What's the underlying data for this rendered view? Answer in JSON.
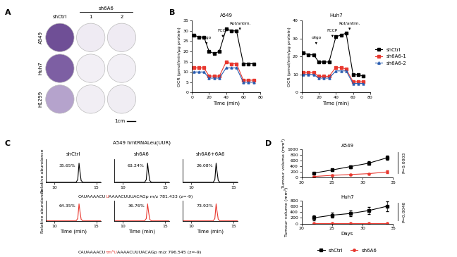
{
  "panel_labels": [
    "A",
    "B",
    "C",
    "D"
  ],
  "panel_a": {
    "control": "shCtrl",
    "group": "sh6A6",
    "clones": [
      "1",
      "2"
    ],
    "rows": [
      "A549",
      "Huh7",
      "H1299"
    ],
    "well_colors": [
      [
        "#6f4f96",
        "#efebf3",
        "#efebf3"
      ],
      [
        "#7d5fa3",
        "#f2eff5",
        "#f2eff5"
      ],
      [
        "#b5a3cc",
        "#f1eef4",
        "#f0edf3"
      ]
    ],
    "scale_bar": "1cm"
  },
  "panel_c": {
    "title": "A549 hmtRNALeu(UUR)",
    "sequences": [
      [
        {
          "text": "CAUAAAACU",
          "color": "black"
        },
        {
          "text": "U",
          "color": "#e8382f"
        },
        {
          "text": "AAAACUUUACAGp m/z 781.433 (z=-9)",
          "color": "black"
        }
      ],
      [
        {
          "text": "CAUAAAACU",
          "color": "black"
        },
        {
          "text": "τm⁵U",
          "color": "#e8382f"
        },
        {
          "text": "AAAACUUUACAGp m/z 796.545 (z=-9)",
          "color": "black"
        }
      ]
    ]
  },
  "chart_data": [
    {
      "type": "line",
      "panel": "B",
      "title": "A549",
      "x_label": "Time (min)",
      "y_label": "OCR (pmol/min/μg protein)",
      "x": [
        2,
        8,
        14,
        20,
        26,
        32,
        40,
        46,
        52,
        60,
        66,
        72
      ],
      "xlim": [
        0,
        80
      ],
      "xticks": [
        0,
        20,
        40,
        60,
        80
      ],
      "ylim": [
        0,
        35
      ],
      "yticks": [
        0,
        5,
        10,
        15,
        20,
        25,
        30,
        35
      ],
      "annotations": [
        {
          "text": "oligo",
          "x": 17
        },
        {
          "text": "FCCP",
          "x": 36
        },
        {
          "text": "Rot/antim.",
          "x": 56
        }
      ],
      "series": [
        {
          "name": "shCtrl",
          "color": "black",
          "marker": "square",
          "values": [
            28,
            27,
            27,
            20,
            19,
            20,
            31,
            30,
            30,
            14,
            14,
            14
          ]
        },
        {
          "name": "sh6A6-1",
          "color": "#e8382f",
          "marker": "square",
          "values": [
            12,
            12,
            12,
            8,
            8,
            8,
            15,
            14,
            14,
            6,
            6,
            6
          ]
        },
        {
          "name": "sh6A6-2",
          "color": "#2a5db0",
          "marker": "triangle",
          "values": [
            10,
            10,
            10,
            7,
            7,
            7,
            12,
            12,
            12,
            5,
            5,
            5
          ]
        }
      ]
    },
    {
      "type": "line",
      "panel": "B",
      "title": "Huh7",
      "x_label": "Time (min)",
      "y_label": "OCR (pmol/min/μg protein)",
      "x": [
        2,
        8,
        14,
        20,
        26,
        32,
        40,
        46,
        52,
        60,
        66,
        72
      ],
      "xlim": [
        0,
        80
      ],
      "xticks": [
        0,
        20,
        40,
        60,
        80
      ],
      "ylim": [
        0,
        40
      ],
      "yticks": [
        0,
        10,
        20,
        30,
        40
      ],
      "legend": "right",
      "annotations": [
        {
          "text": "oligo",
          "x": 17
        },
        {
          "text": "FCCP",
          "x": 36
        },
        {
          "text": "Rot/antim.",
          "x": 56
        }
      ],
      "series": [
        {
          "name": "shCtrl",
          "color": "black",
          "marker": "square",
          "values": [
            22,
            21,
            21,
            17,
            17,
            17,
            31,
            32,
            33,
            10,
            10,
            9
          ]
        },
        {
          "name": "sh6A6-1",
          "color": "#e8382f",
          "marker": "square",
          "values": [
            11,
            11,
            11,
            9,
            9,
            9,
            14,
            14,
            13,
            6,
            6,
            6
          ]
        },
        {
          "name": "sh6A6-2",
          "color": "#2a5db0",
          "marker": "triangle",
          "values": [
            10,
            10,
            10,
            8,
            8,
            8,
            12,
            12,
            12,
            5,
            5,
            5
          ]
        }
      ]
    },
    {
      "type": "line",
      "panel": "C",
      "title": "shCtrl",
      "y_label": "Relative abundance",
      "tick_labels": "x",
      "color": "black",
      "x": [
        9,
        12.6,
        12.8,
        12.95,
        13.05,
        13.2,
        13.4,
        15.5
      ],
      "values": [
        0.01,
        0.01,
        0.15,
        1.0,
        0.6,
        0.1,
        0.01,
        0.01
      ],
      "xlim": [
        9,
        15.5
      ],
      "xticks": [
        10,
        15
      ],
      "ylim": [
        0,
        1.2
      ],
      "annotations": [
        {
          "text": "35.65%"
        }
      ]
    },
    {
      "type": "line",
      "panel": "C",
      "title": "sh6A6",
      "tick_labels": "x",
      "color": "black",
      "x": [
        9,
        12.6,
        12.8,
        12.95,
        13.05,
        13.2,
        13.4,
        15.5
      ],
      "values": [
        0.01,
        0.01,
        0.15,
        1.0,
        0.6,
        0.1,
        0.01,
        0.01
      ],
      "xlim": [
        9,
        15.5
      ],
      "xticks": [
        10,
        15
      ],
      "ylim": [
        0,
        1.2
      ],
      "annotations": [
        {
          "text": "63.24%"
        }
      ]
    },
    {
      "type": "line",
      "panel": "C",
      "title": "sh6A6+6A6",
      "tick_labels": "x",
      "color": "black",
      "x": [
        9,
        12.6,
        12.8,
        12.95,
        13.05,
        13.2,
        13.4,
        15.5
      ],
      "values": [
        0.01,
        0.01,
        0.15,
        1.0,
        0.6,
        0.1,
        0.01,
        0.01
      ],
      "xlim": [
        9,
        15.5
      ],
      "xticks": [
        10,
        15
      ],
      "ylim": [
        0,
        1.2
      ],
      "annotations": [
        {
          "text": "26.08%"
        }
      ]
    },
    {
      "type": "line",
      "panel": "C",
      "y_label": "Relative abundance",
      "x_label": "Time (min)",
      "tick_labels": "x",
      "color": "#e8382f",
      "x": [
        9,
        12.6,
        12.8,
        12.95,
        13.05,
        13.2,
        13.4,
        15.5
      ],
      "values": [
        0.01,
        0.01,
        0.15,
        1.0,
        0.6,
        0.1,
        0.01,
        0.01
      ],
      "xlim": [
        9,
        15.5
      ],
      "xticks": [
        10,
        15
      ],
      "ylim": [
        0,
        1.2
      ],
      "annotations": [
        {
          "text": "64.35%"
        }
      ]
    },
    {
      "type": "line",
      "panel": "C",
      "x_label": "Time (min)",
      "tick_labels": "x",
      "color": "#e8382f",
      "x": [
        9,
        12.6,
        12.8,
        12.95,
        13.05,
        13.2,
        13.4,
        15.5
      ],
      "values": [
        0.01,
        0.01,
        0.15,
        1.0,
        0.6,
        0.1,
        0.01,
        0.01
      ],
      "xlim": [
        9,
        15.5
      ],
      "xticks": [
        10,
        15
      ],
      "ylim": [
        0,
        1.2
      ],
      "annotations": [
        {
          "text": "36.76%"
        }
      ]
    },
    {
      "type": "line",
      "panel": "C",
      "x_label": "Time (min)",
      "tick_labels": "x",
      "color": "#e8382f",
      "x": [
        9,
        12.6,
        12.8,
        12.95,
        13.05,
        13.2,
        13.4,
        15.5
      ],
      "values": [
        0.01,
        0.01,
        0.15,
        1.0,
        0.6,
        0.1,
        0.01,
        0.01
      ],
      "xlim": [
        9,
        15.5
      ],
      "xticks": [
        10,
        15
      ],
      "ylim": [
        0,
        1.2
      ],
      "annotations": [
        {
          "text": "73.92%"
        }
      ]
    },
    {
      "type": "line",
      "panel": "D",
      "title": "A549",
      "y_label": "Tumour volume (mm³)",
      "x": [
        22,
        25,
        28,
        31,
        34
      ],
      "xlim": [
        20,
        35
      ],
      "xticks": [
        20,
        25,
        30,
        35
      ],
      "ylim": [
        0,
        1000
      ],
      "yticks": [
        0,
        200,
        400,
        600,
        800,
        1000
      ],
      "annotations": [
        {
          "text": "P=0.0003"
        }
      ],
      "series": [
        {
          "name": "shCtrl",
          "color": "black",
          "marker": "square",
          "values": [
            150,
            260,
            380,
            500,
            690
          ],
          "errors": [
            30,
            40,
            50,
            60,
            70
          ]
        },
        {
          "name": "sh6A6",
          "color": "#e8382f",
          "marker": "circle",
          "values": [
            30,
            70,
            100,
            130,
            190
          ],
          "errors": [
            10,
            15,
            20,
            25,
            50
          ]
        }
      ]
    },
    {
      "type": "line",
      "panel": "D",
      "title": "Huh7",
      "y_label": "Tumour volume (mm³)",
      "x_label": "Days",
      "x": [
        22,
        25,
        28,
        31,
        34
      ],
      "xlim": [
        20,
        35
      ],
      "xticks": [
        20,
        25,
        30,
        35
      ],
      "ylim": [
        0,
        800
      ],
      "yticks": [
        0,
        200,
        400,
        600,
        800
      ],
      "legend": "bottom",
      "annotations": [
        {
          "text": "P=0.0040"
        }
      ],
      "series": [
        {
          "name": "shCtrl",
          "color": "black",
          "marker": "square",
          "values": [
            200,
            290,
            350,
            450,
            600
          ],
          "errors": [
            80,
            80,
            100,
            120,
            180
          ]
        },
        {
          "name": "sh6A6",
          "color": "#e8382f",
          "marker": "circle",
          "values": [
            10,
            10,
            10,
            10,
            10
          ],
          "errors": [
            3,
            3,
            3,
            3,
            3
          ]
        }
      ]
    }
  ]
}
